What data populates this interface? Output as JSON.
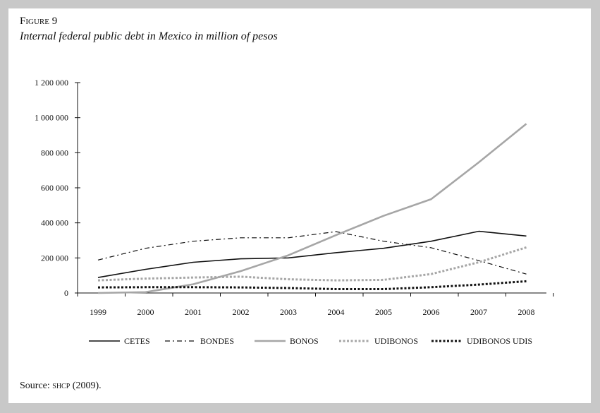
{
  "figure": {
    "label": "Figure 9",
    "title": "Internal federal public debt in Mexico in million of pesos",
    "source_prefix": "Source:",
    "source_org": "shcp",
    "source_year": "(2009)."
  },
  "chart_data": {
    "type": "line",
    "title": "Internal federal public debt in Mexico in million of pesos",
    "xlabel": "",
    "ylabel": "",
    "ylim": [
      0,
      1200000
    ],
    "yticks": [
      0,
      200000,
      400000,
      600000,
      800000,
      1000000,
      1200000
    ],
    "ytick_labels": [
      "0",
      "200 000",
      "400 000",
      "600 000",
      "800 000",
      "1 000 000",
      "1 200 000"
    ],
    "categories": [
      "1999",
      "2000",
      "2001",
      "2002",
      "2003",
      "2004",
      "2005",
      "2006",
      "2007",
      "2008"
    ],
    "legend_position": "bottom",
    "grid": false,
    "series": [
      {
        "name": "CETES",
        "color": "#111111",
        "style": "solid",
        "values": [
          88000,
          135000,
          175000,
          195000,
          200000,
          230000,
          255000,
          295000,
          352000,
          325000
        ]
      },
      {
        "name": "BONDES",
        "color": "#111111",
        "style": "dashdot",
        "values": [
          188000,
          255000,
          295000,
          315000,
          315000,
          350000,
          295000,
          258000,
          185000,
          108000
        ]
      },
      {
        "name": "BONOS",
        "color": "#a6a6a6",
        "style": "solid-thick",
        "values": [
          0,
          5000,
          50000,
          125000,
          215000,
          330000,
          440000,
          535000,
          745000,
          965000
        ]
      },
      {
        "name": "UDIBONOS",
        "color": "#a6a6a6",
        "style": "dotted-thick",
        "values": [
          72000,
          82000,
          88000,
          93000,
          78000,
          72000,
          75000,
          108000,
          175000,
          260000
        ]
      },
      {
        "name": "UDIBONOS UDIS",
        "color": "#111111",
        "style": "dotted-thick",
        "values": [
          32000,
          33000,
          33000,
          32000,
          28000,
          22000,
          22000,
          33000,
          48000,
          67000
        ]
      }
    ]
  }
}
